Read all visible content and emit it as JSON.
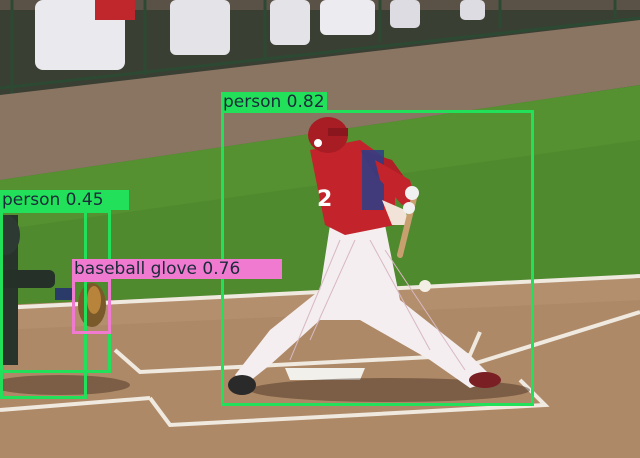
{
  "image": {
    "scene": "baseball batter swinging at a pitch, catcher at left",
    "detections": [
      {
        "label_text": "person 0.82",
        "class": "person",
        "confidence": 0.82,
        "color": "#22e05a"
      },
      {
        "label_text": "person 0.45",
        "class": "person",
        "confidence": 0.45,
        "color": "#22e05a"
      },
      {
        "label_text": "baseball glove 0.76",
        "class": "baseball glove",
        "confidence": 0.76,
        "color": "#f07ad0"
      }
    ]
  }
}
